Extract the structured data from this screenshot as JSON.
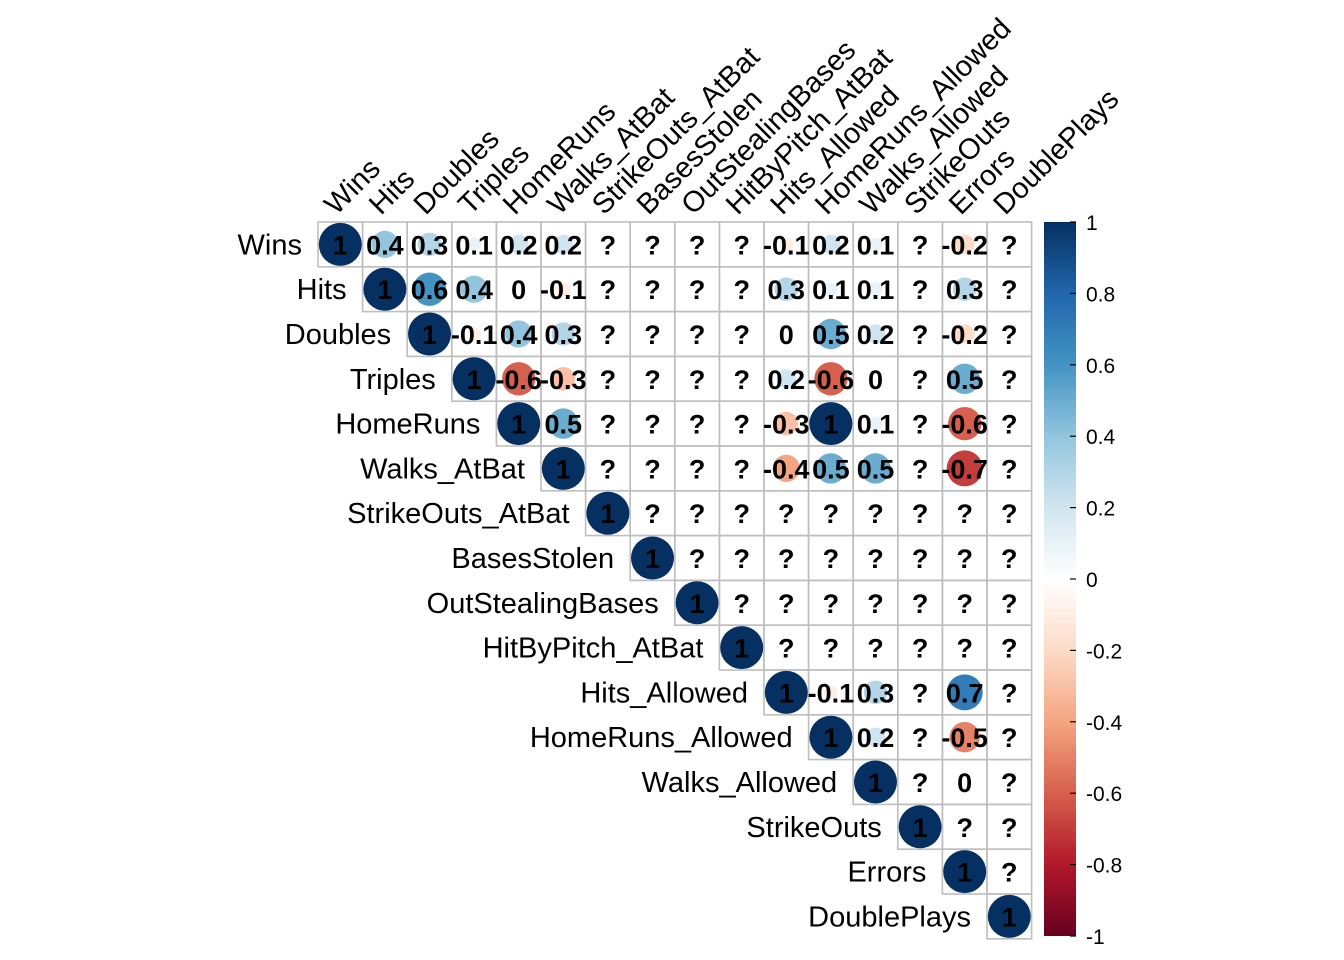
{
  "chart_data": {
    "type": "heatmap",
    "subtype": "correlation-matrix-upper-triangle",
    "marker": "circle",
    "variables": [
      "Wins",
      "Hits",
      "Doubles",
      "Triples",
      "HomeRuns",
      "Walks_AtBat",
      "StrikeOuts_AtBat",
      "BasesStolen",
      "OutStealingBases",
      "HitByPitch_AtBat",
      "Hits_Allowed",
      "HomeRuns_Allowed",
      "Walks_Allowed",
      "StrikeOuts",
      "Errors",
      "DoublePlays"
    ],
    "matrix": [
      [
        1,
        0.4,
        0.3,
        0.1,
        0.2,
        0.2,
        null,
        null,
        null,
        null,
        -0.1,
        0.2,
        0.1,
        null,
        -0.2,
        null
      ],
      [
        null,
        1,
        0.6,
        0.4,
        0,
        -0.1,
        null,
        null,
        null,
        null,
        0.3,
        0.1,
        0.1,
        null,
        0.3,
        null
      ],
      [
        null,
        null,
        1,
        -0.1,
        0.4,
        0.3,
        null,
        null,
        null,
        null,
        0,
        0.5,
        0.2,
        null,
        -0.2,
        null
      ],
      [
        null,
        null,
        null,
        1,
        -0.6,
        -0.3,
        null,
        null,
        null,
        null,
        0.2,
        -0.6,
        0,
        null,
        0.5,
        null
      ],
      [
        null,
        null,
        null,
        null,
        1,
        0.5,
        null,
        null,
        null,
        null,
        -0.3,
        1,
        0.1,
        null,
        -0.6,
        null
      ],
      [
        null,
        null,
        null,
        null,
        null,
        1,
        null,
        null,
        null,
        null,
        -0.4,
        0.5,
        0.5,
        null,
        -0.7,
        null
      ],
      [
        null,
        null,
        null,
        null,
        null,
        null,
        1,
        null,
        null,
        null,
        null,
        null,
        null,
        null,
        null,
        null
      ],
      [
        null,
        null,
        null,
        null,
        null,
        null,
        null,
        1,
        null,
        null,
        null,
        null,
        null,
        null,
        null,
        null
      ],
      [
        null,
        null,
        null,
        null,
        null,
        null,
        null,
        null,
        1,
        null,
        null,
        null,
        null,
        null,
        null,
        null
      ],
      [
        null,
        null,
        null,
        null,
        null,
        null,
        null,
        null,
        null,
        1,
        null,
        null,
        null,
        null,
        null,
        null
      ],
      [
        null,
        null,
        null,
        null,
        null,
        null,
        null,
        null,
        null,
        null,
        1,
        -0.1,
        0.3,
        null,
        0.7,
        null
      ],
      [
        null,
        null,
        null,
        null,
        null,
        null,
        null,
        null,
        null,
        null,
        null,
        1,
        0.2,
        null,
        -0.5,
        null
      ],
      [
        null,
        null,
        null,
        null,
        null,
        null,
        null,
        null,
        null,
        null,
        null,
        null,
        1,
        null,
        0,
        null
      ],
      [
        null,
        null,
        null,
        null,
        null,
        null,
        null,
        null,
        null,
        null,
        null,
        null,
        null,
        1,
        null,
        null
      ],
      [
        null,
        null,
        null,
        null,
        null,
        null,
        null,
        null,
        null,
        null,
        null,
        null,
        null,
        null,
        1,
        null
      ],
      [
        null,
        null,
        null,
        null,
        null,
        null,
        null,
        null,
        null,
        null,
        null,
        null,
        null,
        null,
        null,
        1
      ]
    ],
    "missing_label": "?",
    "colorbar": {
      "range": [
        -1,
        1
      ],
      "ticks": [
        "1",
        "0.8",
        "0.6",
        "0.4",
        "0.2",
        "0",
        "-0.2",
        "-0.4",
        "-0.6",
        "-0.8",
        "-1"
      ],
      "palette": [
        "#67001F",
        "#B2182B",
        "#D6604D",
        "#F4A582",
        "#FDDBC7",
        "#FFFFFF",
        "#D1E5F0",
        "#92C5DE",
        "#4393C3",
        "#2166AC",
        "#053061"
      ]
    },
    "legend": "right",
    "grid": true,
    "grid_color": "#bebebe"
  }
}
